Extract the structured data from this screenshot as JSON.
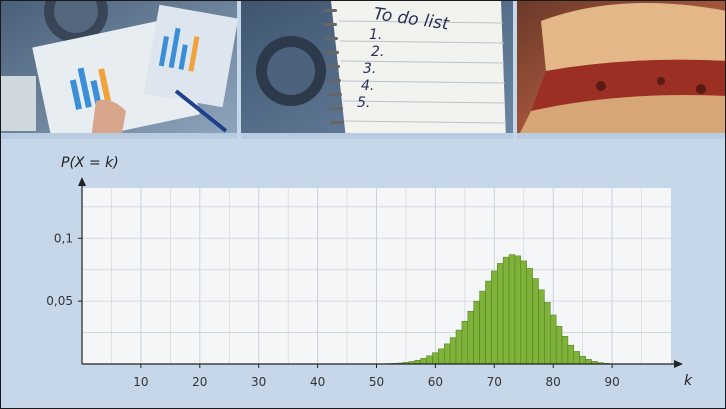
{
  "banner": {
    "panels": [
      {
        "name": "business-charts-photo",
        "description_icon": "photo-icon"
      },
      {
        "name": "to-do-list-photo",
        "description_icon": "photo-icon"
      },
      {
        "name": "sandwich-photo",
        "description_icon": "photo-icon"
      }
    ],
    "todo_title": "To do list",
    "todo_items": [
      "1.",
      "2.",
      "3.",
      "4.",
      "5."
    ]
  },
  "colors": {
    "background": "#c7d7ea",
    "plot_background": "#f4f6f8",
    "bar_fill": "#7fb23a",
    "bar_stroke": "#4f7a1c",
    "axis": "#222222"
  },
  "chart_data": {
    "type": "bar",
    "ylabel": "P(X = k)",
    "xlabel": "k",
    "xlim": [
      0,
      100
    ],
    "ylim": [
      0,
      0.14
    ],
    "xticks": [
      "10",
      "20",
      "30",
      "40",
      "50",
      "60",
      "70",
      "80",
      "90"
    ],
    "yticks": [
      "0,05",
      "0,1"
    ],
    "grid": true,
    "k": [
      50,
      51,
      52,
      53,
      54,
      55,
      56,
      57,
      58,
      59,
      60,
      61,
      62,
      63,
      64,
      65,
      66,
      67,
      68,
      69,
      70,
      71,
      72,
      73,
      74,
      75,
      76,
      77,
      78,
      79,
      80,
      81,
      82,
      83,
      84,
      85,
      86,
      87,
      88,
      89,
      90
    ],
    "values": [
      0.0001,
      0.0002,
      0.0003,
      0.0005,
      0.0008,
      0.0013,
      0.002,
      0.003,
      0.0045,
      0.0065,
      0.009,
      0.012,
      0.016,
      0.021,
      0.027,
      0.034,
      0.042,
      0.05,
      0.058,
      0.066,
      0.074,
      0.08,
      0.085,
      0.087,
      0.086,
      0.082,
      0.076,
      0.068,
      0.059,
      0.049,
      0.039,
      0.03,
      0.022,
      0.015,
      0.01,
      0.0062,
      0.0037,
      0.0021,
      0.0011,
      0.0005,
      0.0002
    ]
  }
}
